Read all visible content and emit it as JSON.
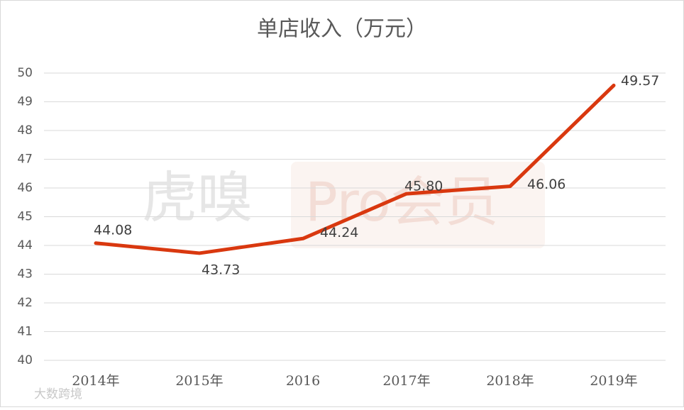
{
  "chart_data": {
    "type": "line",
    "title": "单店收入（万元）",
    "categories": [
      "2014年",
      "2015年",
      "2016",
      "2017年",
      "2018年",
      "2019年"
    ],
    "series": [
      {
        "name": "单店收入",
        "color": "#d9380f",
        "values": [
          44.08,
          43.73,
          44.24,
          45.8,
          46.06,
          49.57
        ],
        "value_labels": [
          "44.08",
          "43.73",
          "44.24",
          "45.80",
          "46.06",
          "49.57"
        ]
      }
    ],
    "ylim": [
      40,
      50
    ],
    "yticks": [
      40,
      41,
      42,
      43,
      44,
      45,
      46,
      47,
      48,
      49,
      50
    ],
    "grid": true,
    "watermarks": [
      "虎嗅",
      "Pro会员",
      "大数跨境"
    ]
  }
}
